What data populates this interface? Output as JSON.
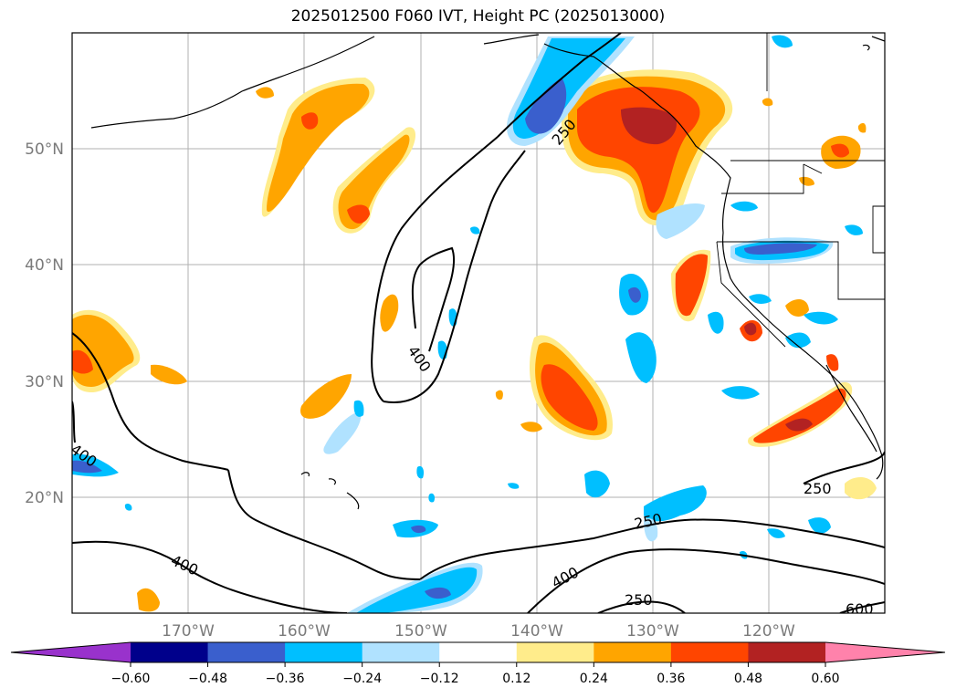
{
  "title": "2025012500 F060 IVT, Height PC (2025013000)",
  "axes": {
    "lon_labels": [
      "170°W",
      "160°W",
      "150°W",
      "140°W",
      "130°W",
      "120°W"
    ],
    "lat_labels": [
      "50°N",
      "40°N",
      "30°N",
      "20°N"
    ]
  },
  "contour_labels": [
    "250",
    "400",
    "400",
    "250",
    "250",
    "400",
    "400",
    "600",
    "250"
  ],
  "colorbar": {
    "ticks": [
      "−0.60",
      "−0.48",
      "−0.36",
      "−0.24",
      "−0.12",
      "0.12",
      "0.24",
      "0.36",
      "0.48",
      "0.60"
    ],
    "colors": [
      "#9932CC",
      "#00008B",
      "#3A5FCD",
      "#00BFFF",
      "#B0E2FF",
      "#FFFFFF",
      "#FFEC8B",
      "#FFA500",
      "#FF4500",
      "#B22222",
      "#FF82AB"
    ]
  }
}
